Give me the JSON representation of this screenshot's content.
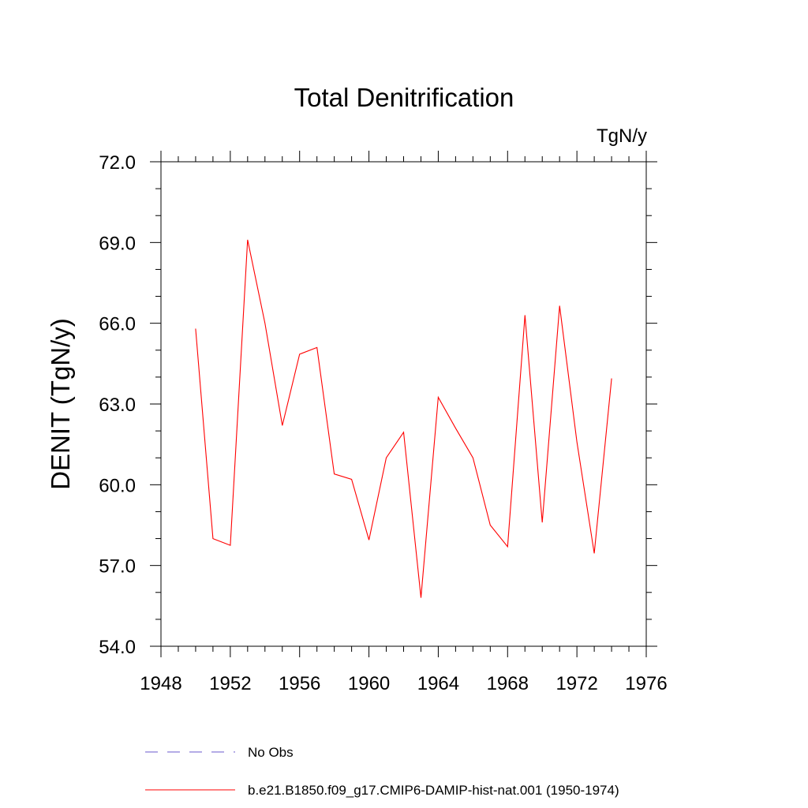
{
  "chart_data": {
    "type": "line",
    "title": "Total Denitrification",
    "units": "TgN/y",
    "ylabel": "DENIT  (TgN/y)",
    "xlabel": "",
    "xlim": [
      1948,
      1976
    ],
    "ylim": [
      54.0,
      72.0
    ],
    "x_ticks": [
      "1948",
      "1952",
      "1956",
      "1960",
      "1964",
      "1968",
      "1972",
      "1976"
    ],
    "y_ticks": [
      "54.0",
      "57.0",
      "60.0",
      "63.0",
      "66.0",
      "69.0",
      "72.0"
    ],
    "grid": false,
    "legend_position": "bottom",
    "legend": [
      {
        "label": "No Obs",
        "color": "#6a5acd",
        "style": "dashed"
      },
      {
        "label": "b.e21.B1850.f09_g17.CMIP6-DAMIP-hist-nat.001 (1950-1974)",
        "color": "#ff0000",
        "style": "solid"
      }
    ],
    "series": [
      {
        "name": "b.e21.B1850.f09_g17.CMIP6-DAMIP-hist-nat.001 (1950-1974)",
        "color": "#ff0000",
        "x": [
          1950,
          1951,
          1952,
          1953,
          1954,
          1955,
          1956,
          1957,
          1958,
          1959,
          1960,
          1961,
          1962,
          1963,
          1964,
          1965,
          1966,
          1967,
          1968,
          1969,
          1970,
          1971,
          1972,
          1973,
          1974
        ],
        "values": [
          65.8,
          58.0,
          57.75,
          69.1,
          66.0,
          62.2,
          64.85,
          65.1,
          60.4,
          60.2,
          57.95,
          61.0,
          61.95,
          55.8,
          63.25,
          62.1,
          61.0,
          58.5,
          57.7,
          66.3,
          58.6,
          66.65,
          61.6,
          57.45,
          63.95
        ]
      }
    ]
  }
}
